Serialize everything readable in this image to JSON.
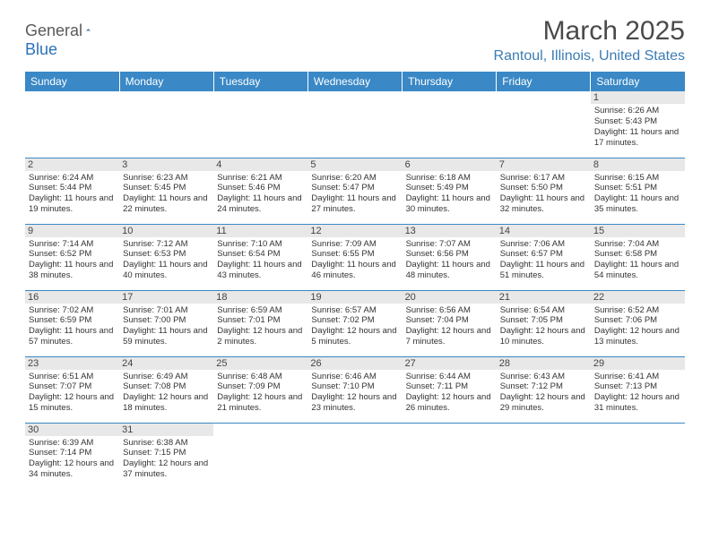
{
  "brand": {
    "part1": "General",
    "part2": "Blue"
  },
  "title": "March 2025",
  "location": "Rantoul, Illinois, United States",
  "colors": {
    "header_bg": "#3a88c5",
    "header_text": "#ffffff",
    "accent": "#2b72b8",
    "location_color": "#3a7cb4",
    "daynum_bg": "#e8e8e8",
    "border": "#3a88c5",
    "text": "#333333",
    "title_color": "#4a4a4a"
  },
  "weekdays": [
    "Sunday",
    "Monday",
    "Tuesday",
    "Wednesday",
    "Thursday",
    "Friday",
    "Saturday"
  ],
  "weeks": [
    [
      null,
      null,
      null,
      null,
      null,
      null,
      {
        "day": "1",
        "sunrise": "6:26 AM",
        "sunset": "5:43 PM",
        "daylight": "11 hours and 17 minutes."
      }
    ],
    [
      {
        "day": "2",
        "sunrise": "6:24 AM",
        "sunset": "5:44 PM",
        "daylight": "11 hours and 19 minutes."
      },
      {
        "day": "3",
        "sunrise": "6:23 AM",
        "sunset": "5:45 PM",
        "daylight": "11 hours and 22 minutes."
      },
      {
        "day": "4",
        "sunrise": "6:21 AM",
        "sunset": "5:46 PM",
        "daylight": "11 hours and 24 minutes."
      },
      {
        "day": "5",
        "sunrise": "6:20 AM",
        "sunset": "5:47 PM",
        "daylight": "11 hours and 27 minutes."
      },
      {
        "day": "6",
        "sunrise": "6:18 AM",
        "sunset": "5:49 PM",
        "daylight": "11 hours and 30 minutes."
      },
      {
        "day": "7",
        "sunrise": "6:17 AM",
        "sunset": "5:50 PM",
        "daylight": "11 hours and 32 minutes."
      },
      {
        "day": "8",
        "sunrise": "6:15 AM",
        "sunset": "5:51 PM",
        "daylight": "11 hours and 35 minutes."
      }
    ],
    [
      {
        "day": "9",
        "sunrise": "7:14 AM",
        "sunset": "6:52 PM",
        "daylight": "11 hours and 38 minutes."
      },
      {
        "day": "10",
        "sunrise": "7:12 AM",
        "sunset": "6:53 PM",
        "daylight": "11 hours and 40 minutes."
      },
      {
        "day": "11",
        "sunrise": "7:10 AM",
        "sunset": "6:54 PM",
        "daylight": "11 hours and 43 minutes."
      },
      {
        "day": "12",
        "sunrise": "7:09 AM",
        "sunset": "6:55 PM",
        "daylight": "11 hours and 46 minutes."
      },
      {
        "day": "13",
        "sunrise": "7:07 AM",
        "sunset": "6:56 PM",
        "daylight": "11 hours and 48 minutes."
      },
      {
        "day": "14",
        "sunrise": "7:06 AM",
        "sunset": "6:57 PM",
        "daylight": "11 hours and 51 minutes."
      },
      {
        "day": "15",
        "sunrise": "7:04 AM",
        "sunset": "6:58 PM",
        "daylight": "11 hours and 54 minutes."
      }
    ],
    [
      {
        "day": "16",
        "sunrise": "7:02 AM",
        "sunset": "6:59 PM",
        "daylight": "11 hours and 57 minutes."
      },
      {
        "day": "17",
        "sunrise": "7:01 AM",
        "sunset": "7:00 PM",
        "daylight": "11 hours and 59 minutes."
      },
      {
        "day": "18",
        "sunrise": "6:59 AM",
        "sunset": "7:01 PM",
        "daylight": "12 hours and 2 minutes."
      },
      {
        "day": "19",
        "sunrise": "6:57 AM",
        "sunset": "7:02 PM",
        "daylight": "12 hours and 5 minutes."
      },
      {
        "day": "20",
        "sunrise": "6:56 AM",
        "sunset": "7:04 PM",
        "daylight": "12 hours and 7 minutes."
      },
      {
        "day": "21",
        "sunrise": "6:54 AM",
        "sunset": "7:05 PM",
        "daylight": "12 hours and 10 minutes."
      },
      {
        "day": "22",
        "sunrise": "6:52 AM",
        "sunset": "7:06 PM",
        "daylight": "12 hours and 13 minutes."
      }
    ],
    [
      {
        "day": "23",
        "sunrise": "6:51 AM",
        "sunset": "7:07 PM",
        "daylight": "12 hours and 15 minutes."
      },
      {
        "day": "24",
        "sunrise": "6:49 AM",
        "sunset": "7:08 PM",
        "daylight": "12 hours and 18 minutes."
      },
      {
        "day": "25",
        "sunrise": "6:48 AM",
        "sunset": "7:09 PM",
        "daylight": "12 hours and 21 minutes."
      },
      {
        "day": "26",
        "sunrise": "6:46 AM",
        "sunset": "7:10 PM",
        "daylight": "12 hours and 23 minutes."
      },
      {
        "day": "27",
        "sunrise": "6:44 AM",
        "sunset": "7:11 PM",
        "daylight": "12 hours and 26 minutes."
      },
      {
        "day": "28",
        "sunrise": "6:43 AM",
        "sunset": "7:12 PM",
        "daylight": "12 hours and 29 minutes."
      },
      {
        "day": "29",
        "sunrise": "6:41 AM",
        "sunset": "7:13 PM",
        "daylight": "12 hours and 31 minutes."
      }
    ],
    [
      {
        "day": "30",
        "sunrise": "6:39 AM",
        "sunset": "7:14 PM",
        "daylight": "12 hours and 34 minutes."
      },
      {
        "day": "31",
        "sunrise": "6:38 AM",
        "sunset": "7:15 PM",
        "daylight": "12 hours and 37 minutes."
      },
      null,
      null,
      null,
      null,
      null
    ]
  ],
  "labels": {
    "sunrise": "Sunrise:",
    "sunset": "Sunset:",
    "daylight": "Daylight:"
  }
}
